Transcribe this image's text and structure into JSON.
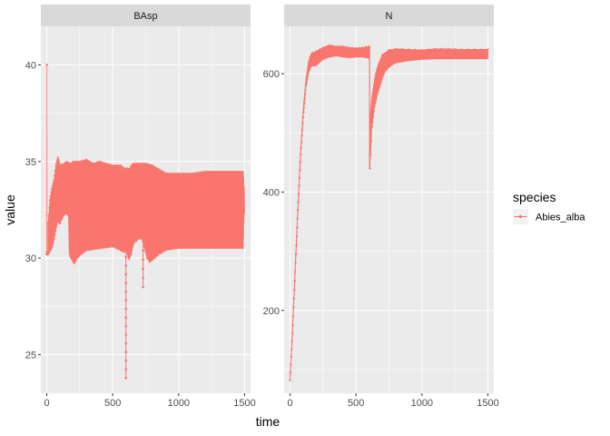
{
  "chart_data": {
    "type": "line",
    "facets": [
      {
        "strip": "BAsp",
        "xlim": [
          -45,
          1545
        ],
        "ylim": [
          23,
          42
        ],
        "xticks": [
          0,
          500,
          1000,
          1500
        ],
        "yticks": [
          25,
          30,
          35,
          40
        ],
        "initial": [
          [
            0,
            30.2
          ],
          [
            1,
            40.0
          ],
          [
            2,
            30.3
          ],
          [
            5,
            30.2
          ]
        ],
        "band_upper": [
          [
            10,
            31.8
          ],
          [
            25,
            33.0
          ],
          [
            40,
            33.6
          ],
          [
            55,
            34.0
          ],
          [
            70,
            34.8
          ],
          [
            85,
            35.2
          ],
          [
            100,
            34.8
          ],
          [
            130,
            34.9
          ],
          [
            150,
            35.0
          ],
          [
            180,
            34.9
          ],
          [
            200,
            35.0
          ],
          [
            250,
            35.0
          ],
          [
            300,
            35.1
          ],
          [
            350,
            34.9
          ],
          [
            400,
            35.0
          ],
          [
            450,
            34.9
          ],
          [
            500,
            34.8
          ],
          [
            560,
            34.8
          ],
          [
            600,
            34.6
          ],
          [
            605,
            34.7
          ],
          [
            625,
            34.6
          ],
          [
            650,
            34.9
          ],
          [
            700,
            34.9
          ],
          [
            750,
            34.9
          ],
          [
            800,
            34.8
          ],
          [
            850,
            34.6
          ],
          [
            900,
            34.4
          ],
          [
            1000,
            34.4
          ],
          [
            1100,
            34.4
          ],
          [
            1200,
            34.5
          ],
          [
            1300,
            34.5
          ],
          [
            1400,
            34.5
          ],
          [
            1490,
            34.5
          ]
        ],
        "band_lower": [
          [
            10,
            30.2
          ],
          [
            25,
            30.4
          ],
          [
            40,
            30.6
          ],
          [
            55,
            31.0
          ],
          [
            70,
            31.6
          ],
          [
            85,
            32.0
          ],
          [
            100,
            31.8
          ],
          [
            130,
            32.2
          ],
          [
            150,
            32.3
          ],
          [
            165,
            32.2
          ],
          [
            170,
            30.2
          ],
          [
            190,
            29.9
          ],
          [
            210,
            29.7
          ],
          [
            230,
            30.0
          ],
          [
            260,
            30.2
          ],
          [
            300,
            30.4
          ],
          [
            400,
            30.5
          ],
          [
            500,
            30.6
          ],
          [
            560,
            30.4
          ],
          [
            590,
            30.3
          ],
          [
            600,
            30.5
          ],
          [
            605,
            30.3
          ],
          [
            625,
            29.9
          ],
          [
            640,
            30.2
          ],
          [
            660,
            30.8
          ],
          [
            700,
            31.0
          ],
          [
            720,
            31.0
          ],
          [
            735,
            30.8
          ],
          [
            745,
            30.4
          ],
          [
            760,
            30.0
          ],
          [
            780,
            29.8
          ],
          [
            800,
            29.9
          ],
          [
            850,
            30.2
          ],
          [
            900,
            30.4
          ],
          [
            1000,
            30.5
          ],
          [
            1200,
            30.5
          ],
          [
            1400,
            30.5
          ],
          [
            1490,
            30.5
          ]
        ],
        "dips": [
          {
            "x": 600,
            "y": 23.8
          },
          {
            "x": 730,
            "y": 28.5
          }
        ],
        "band_end": [
          [
            1490,
            34.5
          ],
          [
            1492,
            31.0
          ],
          [
            1494,
            34.2
          ],
          [
            1496,
            31.8
          ],
          [
            1498,
            33.7
          ],
          [
            1500,
            32.3
          ]
        ]
      },
      {
        "strip": "N",
        "xlim": [
          -45,
          1545
        ],
        "ylim": [
          60,
          680
        ],
        "xticks": [
          0,
          500,
          1000,
          1500
        ],
        "yticks": [
          200,
          400,
          600
        ],
        "band_upper": [
          [
            0,
            90
          ],
          [
            20,
            180
          ],
          [
            40,
            280
          ],
          [
            60,
            380
          ],
          [
            80,
            470
          ],
          [
            100,
            540
          ],
          [
            120,
            590
          ],
          [
            140,
            620
          ],
          [
            160,
            634
          ],
          [
            200,
            638
          ],
          [
            250,
            644
          ],
          [
            300,
            648
          ],
          [
            350,
            646
          ],
          [
            400,
            646
          ],
          [
            450,
            644
          ],
          [
            500,
            643
          ],
          [
            550,
            644
          ],
          [
            600,
            646
          ]
        ],
        "band_lower": [
          [
            0,
            82
          ],
          [
            20,
            170
          ],
          [
            40,
            270
          ],
          [
            60,
            370
          ],
          [
            80,
            460
          ],
          [
            100,
            530
          ],
          [
            120,
            580
          ],
          [
            140,
            605
          ],
          [
            160,
            612
          ],
          [
            200,
            614
          ],
          [
            250,
            624
          ],
          [
            300,
            628
          ],
          [
            350,
            630
          ],
          [
            400,
            628
          ],
          [
            450,
            627
          ],
          [
            500,
            628
          ],
          [
            550,
            628
          ],
          [
            600,
            626
          ]
        ],
        "band2_upper": [
          [
            605,
            520
          ],
          [
            620,
            560
          ],
          [
            640,
            590
          ],
          [
            660,
            610
          ],
          [
            680,
            622
          ],
          [
            700,
            632
          ],
          [
            750,
            640
          ],
          [
            800,
            642
          ],
          [
            900,
            641
          ],
          [
            1000,
            640
          ],
          [
            1100,
            642
          ],
          [
            1200,
            642
          ],
          [
            1300,
            641
          ],
          [
            1400,
            641
          ],
          [
            1500,
            641
          ]
        ],
        "band2_lower": [
          [
            605,
            440
          ],
          [
            620,
            510
          ],
          [
            640,
            545
          ],
          [
            660,
            565
          ],
          [
            680,
            580
          ],
          [
            700,
            595
          ],
          [
            720,
            605
          ],
          [
            750,
            612
          ],
          [
            800,
            618
          ],
          [
            900,
            622
          ],
          [
            1000,
            624
          ],
          [
            1100,
            625
          ],
          [
            1200,
            625
          ],
          [
            1300,
            625
          ],
          [
            1400,
            625
          ],
          [
            1500,
            625
          ]
        ]
      }
    ],
    "xlabel": "time",
    "ylabel": "value",
    "legend": {
      "title": "species",
      "entries": [
        {
          "name": "Abies_alba",
          "color": "#F8766D"
        }
      ],
      "placement": "right"
    },
    "series_color": "#F8766D",
    "panel_background": "#EBEBEB",
    "strip_background": "#D9D9D9",
    "grid": true
  }
}
